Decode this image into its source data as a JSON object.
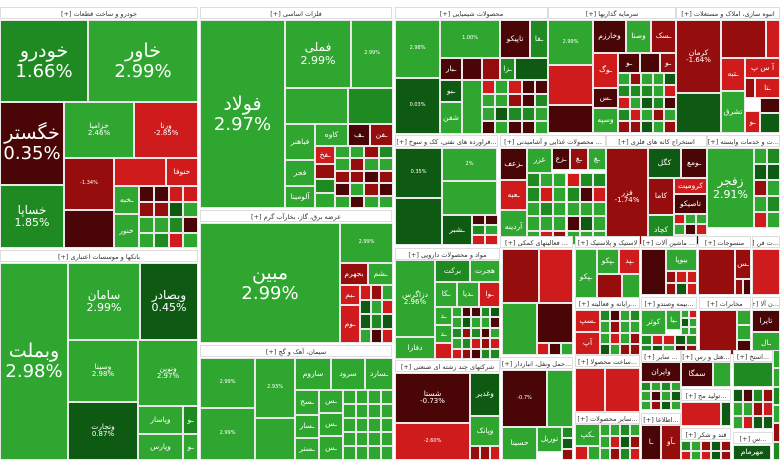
{
  "palette": {
    "G": "#2fa62f",
    "g2": "#1f8a22",
    "D": "#0f5a12",
    "M": "#4a0606",
    "R": "#960d0d",
    "r": "#cf1b1b"
  },
  "sectors": [
    {
      "title": "خودرو و ساخت قطعات [+]",
      "tiles": [
        {
          "name": "خودرو",
          "change": "1.66%",
          "tone": "g2"
        },
        {
          "name": "خاور",
          "change": "2.99%",
          "tone": "G"
        },
        {
          "name": "خگستر",
          "change": "0.35%",
          "tone": "M"
        },
        {
          "name": "خساپا",
          "change": "1.85%",
          "tone": "g2"
        },
        {
          "name": "خزامیا",
          "change": "2.46%",
          "tone": "G"
        },
        {
          "name": "ورنا",
          "change": "-2.85%",
          "tone": "r"
        },
        {
          "name": "",
          "change": "-1.34%",
          "tone": "R"
        },
        {
          "name": "",
          "change": "",
          "tone": "M"
        },
        {
          "name": "خنوفا",
          "change": "",
          "tone": "r"
        },
        {
          "name": "",
          "change": "",
          "tone": "r"
        },
        {
          "name": "ـخبه",
          "change": "",
          "tone": "G"
        },
        {
          "name": "خنور",
          "change": "",
          "tone": "G"
        }
      ]
    },
    {
      "title": "فلزات اساسی [+]",
      "tiles": [
        {
          "name": "فولاد",
          "change": "2.97%",
          "tone": "G"
        },
        {
          "name": "فملی",
          "change": "2.99%",
          "tone": "G"
        },
        {
          "name": "",
          "change": "2.99%",
          "tone": "G"
        },
        {
          "name": "",
          "change": "",
          "tone": "G"
        },
        {
          "name": "",
          "change": "",
          "tone": "g2"
        },
        {
          "name": "فباهنر",
          "change": "",
          "tone": "G"
        },
        {
          "name": "کاوه",
          "change": "",
          "tone": "G"
        },
        {
          "name": "ـف",
          "change": "",
          "tone": "M"
        },
        {
          "name": "ـفن",
          "change": "",
          "tone": "R"
        },
        {
          "name": "ـفخ",
          "change": "",
          "tone": "r"
        },
        {
          "name": "فجر",
          "change": "",
          "tone": "G"
        },
        {
          "name": "آلومینا",
          "change": "",
          "tone": "G"
        }
      ]
    },
    {
      "title": "عرضه برق، گاز، بخارآب گرم [+]",
      "tiles": [
        {
          "name": "مبین",
          "change": "2.99%",
          "tone": "G"
        },
        {
          "name": "",
          "change": "2.99%",
          "tone": "G"
        },
        {
          "name": "بجهرم",
          "change": "",
          "tone": "R"
        },
        {
          "name": "ـشم",
          "change": "",
          "tone": "G"
        },
        {
          "name": "ـبم",
          "change": "",
          "tone": "r"
        },
        {
          "name": "ـوم",
          "change": "",
          "tone": "r"
        }
      ]
    },
    {
      "title": "سیمان، آهک و گچ [+]",
      "tiles": [
        {
          "name": "",
          "change": "2.99%",
          "tone": "G"
        },
        {
          "name": "",
          "change": "2.99%",
          "tone": "G"
        },
        {
          "name": "",
          "change": "2.93%",
          "tone": "G"
        },
        {
          "name": "",
          "change": "",
          "tone": "G"
        },
        {
          "name": "ساروم",
          "change": "",
          "tone": "G"
        },
        {
          "name": "سرود",
          "change": "",
          "tone": "G"
        },
        {
          "name": "ـسارد",
          "change": "",
          "tone": "G"
        },
        {
          "name": "ـسج",
          "change": "",
          "tone": "G"
        },
        {
          "name": "ـسار",
          "change": "",
          "tone": "G"
        },
        {
          "name": "ـستر",
          "change": "",
          "tone": "G"
        },
        {
          "name": "ـس",
          "change": "",
          "tone": "G"
        },
        {
          "name": "ـس",
          "change": "",
          "tone": "G"
        },
        {
          "name": "ـس",
          "change": "",
          "tone": "G"
        }
      ]
    },
    {
      "title": "بانکها و موسسات اعتباری [+]",
      "tiles": [
        {
          "name": "وبملت",
          "change": "2.98%",
          "tone": "G"
        },
        {
          "name": "سامان",
          "change": "2.99%",
          "tone": "G"
        },
        {
          "name": "وبصادر",
          "change": "0.45%",
          "tone": "D"
        },
        {
          "name": "وسینا",
          "change": "2.98%",
          "tone": "G"
        },
        {
          "name": "ونوین",
          "change": "2.97%",
          "tone": "G"
        },
        {
          "name": "وتجارت",
          "change": "0.87%",
          "tone": "D"
        },
        {
          "name": "وپاسار",
          "change": "",
          "tone": "G"
        },
        {
          "name": "وپارس",
          "change": "",
          "tone": "G"
        },
        {
          "name": "ـو",
          "change": "",
          "tone": "g2"
        },
        {
          "name": "ـو",
          "change": "",
          "tone": "G"
        }
      ]
    },
    {
      "title": "محصولات شیمیایی [+]",
      "tiles": [
        {
          "name": "",
          "change": "2.98%",
          "tone": "G"
        },
        {
          "name": "",
          "change": "1.00%",
          "tone": "G"
        },
        {
          "name": "",
          "change": "0.03%",
          "tone": "D"
        },
        {
          "name": "تاپیکو",
          "change": "",
          "tone": "M"
        },
        {
          "name": "ـفا",
          "change": "",
          "tone": "g2"
        },
        {
          "name": "ـبار",
          "change": "",
          "tone": "M"
        },
        {
          "name": "",
          "change": "",
          "tone": "M"
        },
        {
          "name": "",
          "change": "",
          "tone": "R"
        },
        {
          "name": "ـبو",
          "change": "",
          "tone": "D"
        },
        {
          "name": "شفن",
          "change": "",
          "tone": "G"
        },
        {
          "name": "",
          "change": "",
          "tone": "G"
        },
        {
          "name": "ـزا",
          "change": "",
          "tone": "g2"
        },
        {
          "name": "",
          "change": "",
          "tone": "D"
        }
      ]
    },
    {
      "title": "سرمایه گذاریها [+]",
      "tiles": [
        {
          "name": "",
          "change": "2.99%",
          "tone": "G"
        },
        {
          "name": "",
          "change": "",
          "tone": "r"
        },
        {
          "name": "",
          "change": "",
          "tone": "M"
        },
        {
          "name": "وخارزم",
          "change": "",
          "tone": "M"
        },
        {
          "name": "وصنا",
          "change": "",
          "tone": "G"
        },
        {
          "name": "ـسک",
          "change": "",
          "tone": "R"
        },
        {
          "name": "ـوگ",
          "change": "",
          "tone": "r"
        },
        {
          "name": "ـس",
          "change": "",
          "tone": "M"
        },
        {
          "name": "وسپه",
          "change": "",
          "tone": "G"
        },
        {
          "name": "ـو",
          "change": "",
          "tone": "M"
        },
        {
          "name": "",
          "change": "",
          "tone": "M"
        },
        {
          "name": "ـو",
          "change": "",
          "tone": "R"
        }
      ]
    },
    {
      "title": "انبوه سازی، املاک و مستغلات [+]",
      "tiles": [
        {
          "name": "کرمان",
          "change": "-1.64%",
          "tone": "R"
        },
        {
          "name": "",
          "change": "",
          "tone": "R"
        },
        {
          "name": "",
          "change": "",
          "tone": "r"
        },
        {
          "name": "ـتبه",
          "change": "",
          "tone": "r"
        },
        {
          "name": "آ س پ",
          "change": "",
          "tone": "r"
        },
        {
          "name": "ـتا",
          "change": "",
          "tone": "r"
        },
        {
          "name": "",
          "change": "",
          "tone": "R"
        },
        {
          "name": "",
          "change": "",
          "tone": "D"
        },
        {
          "name": "تشرق",
          "change": "",
          "tone": "G"
        },
        {
          "name": "ـو",
          "change": "",
          "tone": "r"
        },
        {
          "name": "",
          "change": "",
          "tone": "M"
        },
        {
          "name": "",
          "change": "",
          "tone": "D"
        }
      ]
    },
    {
      "title": "...فراورده های نفتی، کک و سوخ [+]",
      "tiles": [
        {
          "name": "",
          "change": "0.35%",
          "tone": "D"
        },
        {
          "name": "",
          "change": "2%",
          "tone": "G"
        },
        {
          "name": "",
          "change": "",
          "tone": "G"
        },
        {
          "name": "",
          "change": "",
          "tone": "D"
        },
        {
          "name": "ـشبر",
          "change": "",
          "tone": "D"
        }
      ]
    },
    {
      "title": "... محصولات غذایی و آشامیدنی [+]",
      "tiles": [
        {
          "name": "ـزعف",
          "change": "",
          "tone": "M"
        },
        {
          "name": "غزر",
          "change": "",
          "tone": "G"
        },
        {
          "name": "ـزع",
          "change": "",
          "tone": "M"
        },
        {
          "name": "ـغ",
          "change": "",
          "tone": "R"
        },
        {
          "name": "ـغ",
          "change": "",
          "tone": "G"
        },
        {
          "name": "ـعبه",
          "change": "",
          "tone": "r"
        },
        {
          "name": "آردینه",
          "change": "",
          "tone": "G"
        }
      ]
    },
    {
      "title": "استخراج کانه های فلزی [+]",
      "tiles": [
        {
          "name": "فزر",
          "change": "-1.74%",
          "tone": "R"
        },
        {
          "name": "کگل",
          "change": "",
          "tone": "D"
        },
        {
          "name": "ـومع",
          "change": "",
          "tone": "M"
        },
        {
          "name": "کاما",
          "change": "",
          "tone": "R"
        },
        {
          "name": "کرومیت",
          "change": "",
          "tone": "r"
        },
        {
          "name": "تاصیکو",
          "change": "",
          "tone": "M"
        },
        {
          "name": "کچاد",
          "change": "",
          "tone": "g2"
        }
      ]
    },
    {
      "title": "...ت و خدمات وابسته [+]",
      "tiles": [
        {
          "name": "زفجر",
          "change": "2.91%",
          "tone": "G"
        }
      ]
    },
    {
      "title": "مواد و محصولات دارویی [+]",
      "tiles": [
        {
          "name": "دزاگرس",
          "change": "2.96%",
          "tone": "G"
        },
        {
          "name": "دفارا",
          "change": "",
          "tone": "G"
        },
        {
          "name": "برکت",
          "change": "",
          "tone": "g2"
        },
        {
          "name": "هجرت",
          "change": "",
          "tone": "G"
        },
        {
          "name": "ـکا",
          "change": "",
          "tone": "G"
        },
        {
          "name": "ـدیا",
          "change": "",
          "tone": "G"
        },
        {
          "name": "ـوا",
          "change": "",
          "tone": "r"
        },
        {
          "name": "ـد",
          "change": "",
          "tone": "G"
        },
        {
          "name": "ـد",
          "change": "",
          "tone": "G"
        },
        {
          "name": "",
          "change": "",
          "tone": "r"
        }
      ]
    },
    {
      "title": "شرکتهای چند رشته ای صنعتی [+]",
      "tiles": [
        {
          "name": "شستا",
          "change": "-0.73%",
          "tone": "M"
        },
        {
          "name": "وغدیر",
          "change": "",
          "tone": "D"
        },
        {
          "name": "وپانک",
          "change": "",
          "tone": "G"
        },
        {
          "name": "",
          "change": "-2.60%",
          "tone": "r"
        }
      ]
    },
    {
      "title": "... فعالیتهای کمکی [+]",
      "tiles": [
        {
          "name": "",
          "change": "",
          "tone": "R"
        },
        {
          "name": "",
          "change": "",
          "tone": "r"
        },
        {
          "name": "",
          "change": "",
          "tone": "G"
        },
        {
          "name": "",
          "change": "",
          "tone": "M"
        }
      ]
    },
    {
      "title": "لاستیک و پلاستیک [+]",
      "tiles": [
        {
          "name": "ـپکو",
          "change": "",
          "tone": "G"
        },
        {
          "name": "ـپکو",
          "change": "",
          "tone": "G"
        },
        {
          "name": "ـپد",
          "change": "",
          "tone": "r"
        },
        {
          "name": "",
          "change": "",
          "tone": "R"
        },
        {
          "name": "",
          "change": "",
          "tone": "G"
        }
      ]
    },
    {
      "title": "... ماشین آلات [+]",
      "tiles": [
        {
          "name": "",
          "change": "",
          "tone": "M"
        },
        {
          "name": "بیوپا",
          "change": "",
          "tone": "G"
        }
      ]
    },
    {
      "title": "منسوجات [+]",
      "tiles": [
        {
          "name": "",
          "change": "",
          "tone": "R"
        },
        {
          "name": "ـس",
          "change": "",
          "tone": "R"
        }
      ]
    },
    {
      "title": "...ت فن [+]",
      "tiles": [
        {
          "name": "",
          "change": "",
          "tone": "r"
        }
      ]
    },
    {
      "title": "...رایانه و فعالیته [+]",
      "tiles": [
        {
          "name": "ـسپ",
          "change": "",
          "tone": "r"
        },
        {
          "name": "آپ",
          "change": "",
          "tone": "r"
        }
      ]
    },
    {
      "title": "...بیمه وصندو [+]",
      "tiles": [
        {
          "name": "کوثر",
          "change": "",
          "tone": "G"
        },
        {
          "name": "ـیا",
          "change": "",
          "tone": "G"
        }
      ]
    },
    {
      "title": "مخابرات [+]",
      "tiles": [
        {
          "name": "",
          "change": "",
          "tone": "R"
        }
      ]
    },
    {
      "title": "...ن آلا [+]",
      "tiles": [
        {
          "name": "تایرا",
          "change": "",
          "tone": "M"
        },
        {
          "name": "ـال",
          "change": "",
          "tone": "G"
        }
      ]
    },
    {
      "title": "...حمل ونقل، انباردار [+]",
      "tiles": [
        {
          "name": "",
          "change": "-0.7%",
          "tone": "M"
        },
        {
          "name": "",
          "change": "",
          "tone": "G"
        },
        {
          "name": "حسینا",
          "change": "",
          "tone": "G"
        },
        {
          "name": "توریل",
          "change": "",
          "tone": "G"
        }
      ]
    },
    {
      "title": "...ساخت محصولا [+]",
      "tiles": [
        {
          "name": "",
          "change": "",
          "tone": "r"
        },
        {
          "name": "",
          "change": "",
          "tone": "r"
        }
      ]
    },
    {
      "title": "... سایر [+]",
      "tiles": [
        {
          "name": "وایران",
          "change": "",
          "tone": "M"
        }
      ]
    },
    {
      "title": "...هتل و رس [+]",
      "tiles": [
        {
          "name": "سمگا",
          "change": "",
          "tone": "M"
        },
        {
          "name": "",
          "change": "",
          "tone": "G"
        }
      ]
    },
    {
      "title": "...استخ [+]",
      "tiles": [
        {
          "name": "",
          "change": "",
          "tone": "g2"
        }
      ]
    },
    {
      "title": "...تولید مح [+]",
      "tiles": [
        {
          "name": "",
          "change": "",
          "tone": "r"
        },
        {
          "name": "",
          "change": "",
          "tone": "D"
        }
      ]
    },
    {
      "title": "...سایر محصولات [+]",
      "tiles": [
        {
          "name": "ـکپ",
          "change": "",
          "tone": "G"
        }
      ]
    },
    {
      "title": "...اطلاعا [+]",
      "tiles": [
        {
          "name": "ـا",
          "change": "",
          "tone": "M"
        },
        {
          "name": "ـآو",
          "change": "",
          "tone": "R"
        }
      ]
    },
    {
      "title": "قند و شکر [+]",
      "tiles": []
    },
    {
      "title": "...س [+]",
      "tiles": [
        {
          "name": "مهرمام",
          "change": "",
          "tone": "D"
        }
      ]
    }
  ]
}
